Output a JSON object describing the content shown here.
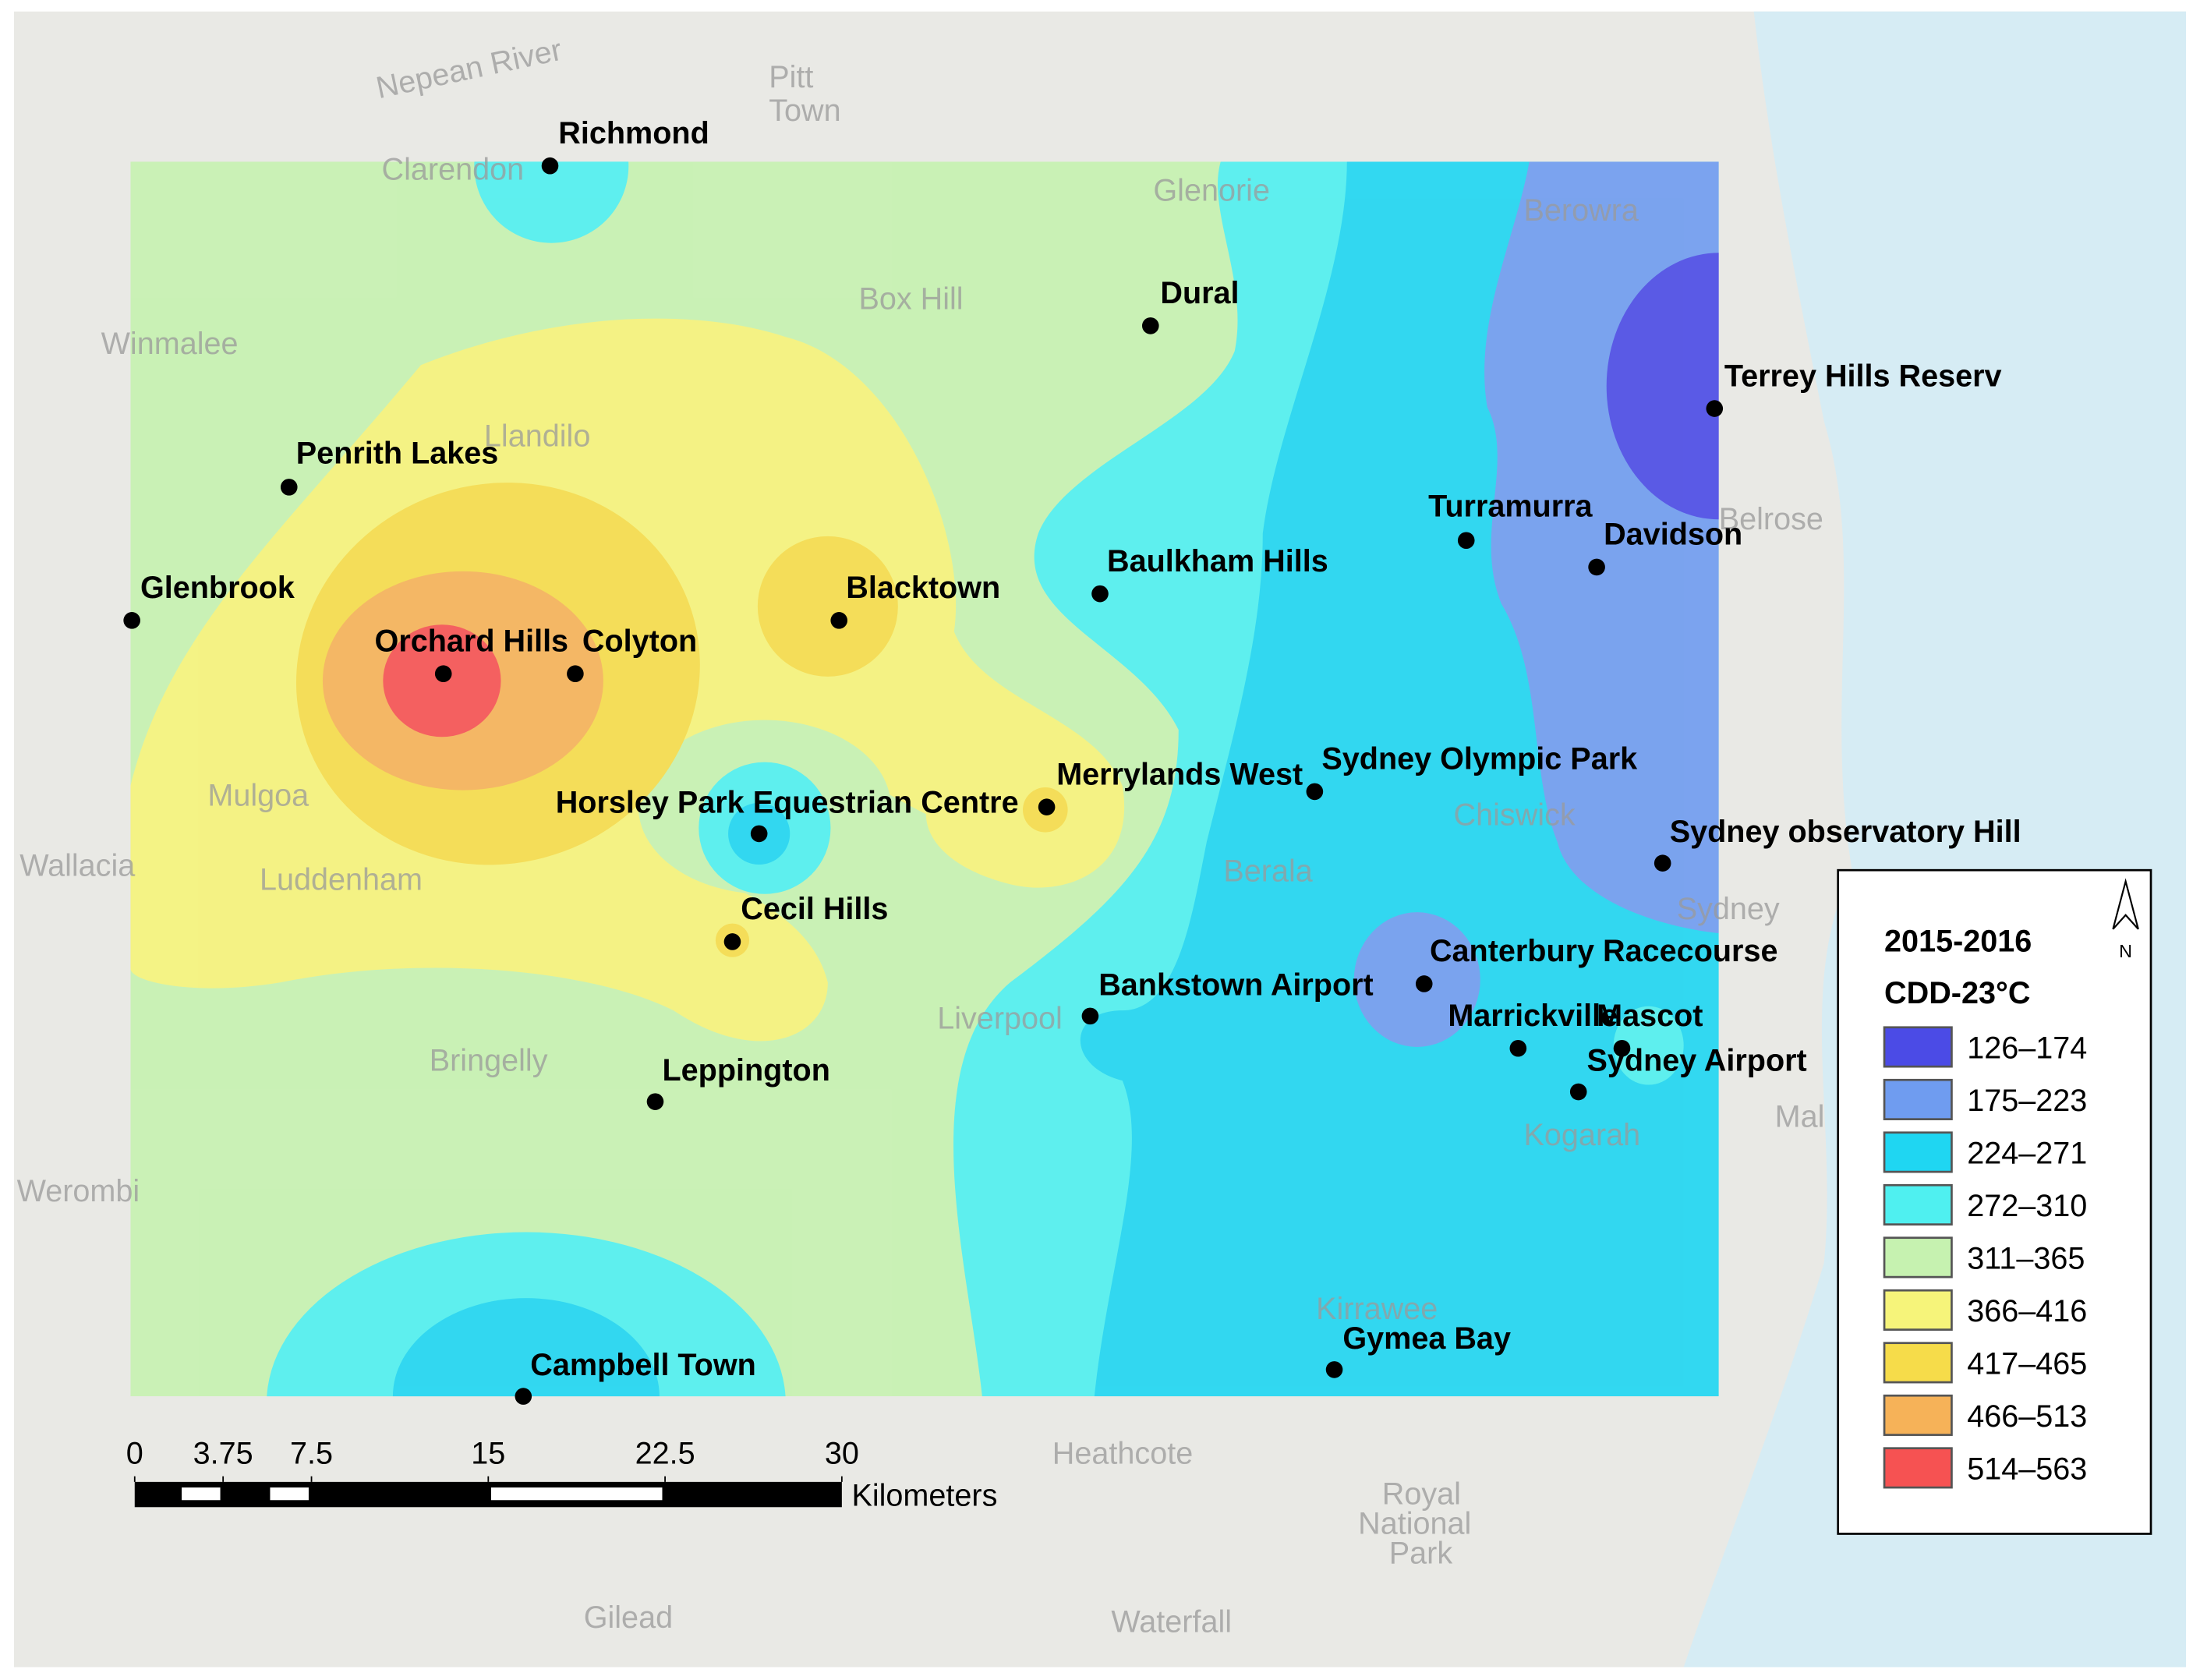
{
  "map": {
    "stations": [
      {
        "name": "Richmond"
      },
      {
        "name": "Dural"
      },
      {
        "name": "Terrey Hills Reserv"
      },
      {
        "name": "Penrith Lakes"
      },
      {
        "name": "Glenbrook"
      },
      {
        "name": "Turramurra"
      },
      {
        "name": "Davidson"
      },
      {
        "name": "Baulkham Hills"
      },
      {
        "name": "Blacktown"
      },
      {
        "name": "Orchard Hills"
      },
      {
        "name": "Colyton"
      },
      {
        "name": "Merrylands West"
      },
      {
        "name": "Sydney Olympic Park"
      },
      {
        "name": "Horsley Park Equestrian Centre"
      },
      {
        "name": "Sydney observatory Hill"
      },
      {
        "name": "Cecil Hills"
      },
      {
        "name": "Canterbury Racecourse"
      },
      {
        "name": "Bankstown Airport"
      },
      {
        "name": "Marrickville"
      },
      {
        "name": "Mascot"
      },
      {
        "name": "Sydney Airport"
      },
      {
        "name": "Leppington"
      },
      {
        "name": "Gymea Bay"
      },
      {
        "name": "Campbell Town"
      }
    ],
    "basemap_labels": [
      "Pitt",
      "Town",
      "Nepean River",
      "Clarendon",
      "Box Hill",
      "Glenorie",
      "Berowra",
      "Winmalee",
      "Llandilo",
      "Belrose",
      "Mulgoa",
      "Wallacia",
      "Luddenham",
      "Chiswick",
      "Berala",
      "Sydney",
      "Liverpool",
      "Bringelly",
      "Kogarah",
      "Werombi",
      "Kirrawee",
      "Heathcote",
      "Royal",
      "National",
      "Park",
      "Gilead",
      "Waterfall",
      "Mal"
    ],
    "legend": {
      "title": "2015-2016",
      "subtitle": "CDD-23°C",
      "north": "N",
      "classes": [
        {
          "label": "126–174",
          "color": "#4b4be6"
        },
        {
          "label": "175–223",
          "color": "#6f9cf0"
        },
        {
          "label": "224–271",
          "color": "#1fd6f2"
        },
        {
          "label": "272–310",
          "color": "#4ff0f0"
        },
        {
          "label": "311–365",
          "color": "#c6f2b0"
        },
        {
          "label": "366–416",
          "color": "#f6f47a"
        },
        {
          "label": "417–465",
          "color": "#f6dc4a"
        },
        {
          "label": "466–513",
          "color": "#f6b258"
        },
        {
          "label": "514–563",
          "color": "#f65252"
        }
      ]
    },
    "scale_bar": {
      "ticks": [
        0,
        3.75,
        7.5,
        15,
        22.5,
        30
      ],
      "unit": "Kilometers"
    }
  }
}
